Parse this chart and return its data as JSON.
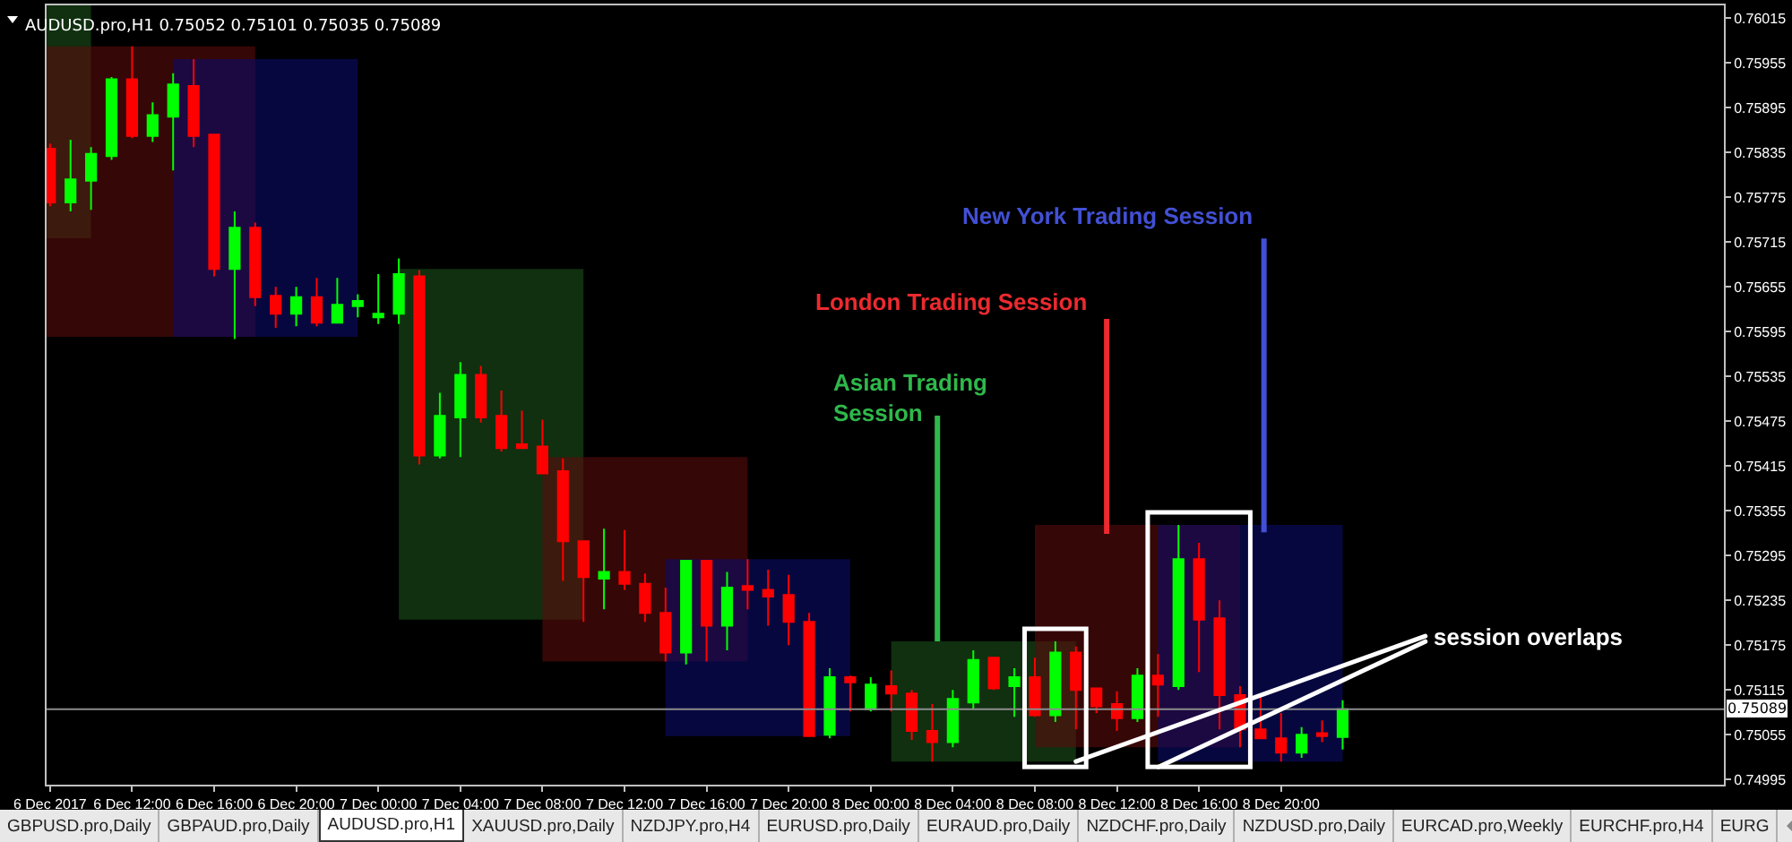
{
  "chart_data": {
    "type": "candlestick",
    "title": "AUDUSD.pro,H1 0.75052 0.75101 0.75035 0.75089",
    "x": [
      "2017-12-06T08:00",
      "2017-12-06T09:00",
      "2017-12-06T10:00",
      "2017-12-06T11:00",
      "2017-12-06T12:00",
      "2017-12-06T13:00",
      "2017-12-06T14:00",
      "2017-12-06T15:00",
      "2017-12-06T16:00",
      "2017-12-06T17:00",
      "2017-12-06T18:00",
      "2017-12-06T19:00",
      "2017-12-06T20:00",
      "2017-12-06T21:00",
      "2017-12-06T22:00",
      "2017-12-06T23:00",
      "2017-12-07T00:00",
      "2017-12-07T01:00",
      "2017-12-07T02:00",
      "2017-12-07T03:00",
      "2017-12-07T04:00",
      "2017-12-07T05:00",
      "2017-12-07T06:00",
      "2017-12-07T07:00",
      "2017-12-07T08:00",
      "2017-12-07T09:00",
      "2017-12-07T10:00",
      "2017-12-07T11:00",
      "2017-12-07T12:00",
      "2017-12-07T13:00",
      "2017-12-07T14:00",
      "2017-12-07T15:00",
      "2017-12-07T16:00",
      "2017-12-07T17:00",
      "2017-12-07T18:00",
      "2017-12-07T19:00",
      "2017-12-07T20:00",
      "2017-12-07T21:00",
      "2017-12-07T22:00",
      "2017-12-07T23:00",
      "2017-12-08T00:00",
      "2017-12-08T01:00",
      "2017-12-08T02:00",
      "2017-12-08T03:00",
      "2017-12-08T04:00",
      "2017-12-08T05:00",
      "2017-12-08T06:00",
      "2017-12-08T07:00",
      "2017-12-08T08:00",
      "2017-12-08T09:00",
      "2017-12-08T10:00",
      "2017-12-08T11:00",
      "2017-12-08T12:00",
      "2017-12-08T13:00",
      "2017-12-08T14:00",
      "2017-12-08T15:00",
      "2017-12-08T16:00",
      "2017-12-08T17:00",
      "2017-12-08T18:00",
      "2017-12-08T19:00",
      "2017-12-08T20:00",
      "2017-12-08T21:00",
      "2017-12-08T22:00",
      "2017-12-08T23:00"
    ],
    "ohlc": [
      [
        0.7584,
        0.75847,
        0.75763,
        0.75768
      ],
      [
        0.75768,
        0.75852,
        0.75756,
        0.75799
      ],
      [
        0.75797,
        0.75842,
        0.75758,
        0.75833
      ],
      [
        0.7583,
        0.75936,
        0.75825,
        0.75933
      ],
      [
        0.75933,
        0.75977,
        0.75854,
        0.75857
      ],
      [
        0.75857,
        0.75902,
        0.75849,
        0.75885
      ],
      [
        0.75883,
        0.75941,
        0.75811,
        0.75926
      ],
      [
        0.75924,
        0.7596,
        0.75842,
        0.75857
      ],
      [
        0.75859,
        0.75859,
        0.75669,
        0.75679
      ],
      [
        0.75679,
        0.75756,
        0.75585,
        0.75734
      ],
      [
        0.75734,
        0.75741,
        0.75629,
        0.75641
      ],
      [
        0.75643,
        0.75655,
        0.756,
        0.75619
      ],
      [
        0.75619,
        0.75655,
        0.75602,
        0.75641
      ],
      [
        0.75641,
        0.75667,
        0.75602,
        0.75607
      ],
      [
        0.75607,
        0.75667,
        0.75607,
        0.75631
      ],
      [
        0.75629,
        0.75645,
        0.75614,
        0.75636
      ],
      [
        0.75614,
        0.75672,
        0.75605,
        0.75619
      ],
      [
        0.75619,
        0.75693,
        0.75605,
        0.75672
      ],
      [
        0.75669,
        0.75677,
        0.75417,
        0.75429
      ],
      [
        0.75429,
        0.75513,
        0.75425,
        0.75482
      ],
      [
        0.7548,
        0.75554,
        0.75427,
        0.75537
      ],
      [
        0.75537,
        0.75549,
        0.75473,
        0.7548
      ],
      [
        0.75482,
        0.75516,
        0.75434,
        0.75439
      ],
      [
        0.75444,
        0.75489,
        0.75439,
        0.75439
      ],
      [
        0.75441,
        0.75477,
        0.75405,
        0.75405
      ],
      [
        0.75408,
        0.75425,
        0.75261,
        0.75314
      ],
      [
        0.75314,
        0.75314,
        0.75206,
        0.75266
      ],
      [
        0.75264,
        0.75331,
        0.75223,
        0.75273
      ],
      [
        0.75273,
        0.75329,
        0.75249,
        0.75257
      ],
      [
        0.75257,
        0.75271,
        0.75206,
        0.75218
      ],
      [
        0.75218,
        0.75252,
        0.75153,
        0.75165
      ],
      [
        0.75165,
        0.75288,
        0.75149,
        0.75288
      ],
      [
        0.75288,
        0.75288,
        0.75153,
        0.75201
      ],
      [
        0.75201,
        0.75273,
        0.75168,
        0.75252
      ],
      [
        0.75254,
        0.7529,
        0.75223,
        0.75249
      ],
      [
        0.75249,
        0.75276,
        0.75201,
        0.7524
      ],
      [
        0.75242,
        0.75269,
        0.75175,
        0.75206
      ],
      [
        0.75206,
        0.75218,
        0.75053,
        0.75053
      ],
      [
        0.75055,
        0.75144,
        0.7505,
        0.75132
      ],
      [
        0.75132,
        0.75134,
        0.75086,
        0.75125
      ],
      [
        0.75089,
        0.75132,
        0.75086,
        0.75122
      ],
      [
        0.7512,
        0.75141,
        0.75086,
        0.7511
      ],
      [
        0.7511,
        0.75115,
        0.75048,
        0.7506
      ],
      [
        0.7506,
        0.75096,
        0.75019,
        0.75045
      ],
      [
        0.75045,
        0.75115,
        0.75038,
        0.75103
      ],
      [
        0.75098,
        0.75168,
        0.75089,
        0.75155
      ],
      [
        0.75158,
        0.75158,
        0.75115,
        0.75117
      ],
      [
        0.7512,
        0.75144,
        0.75079,
        0.75132
      ],
      [
        0.75132,
        0.75158,
        0.75079,
        0.75081
      ],
      [
        0.75081,
        0.7518,
        0.75072,
        0.75165
      ],
      [
        0.75165,
        0.75173,
        0.75062,
        0.75115
      ],
      [
        0.75117,
        0.75117,
        0.75084,
        0.75093
      ],
      [
        0.75096,
        0.75113,
        0.7506,
        0.75077
      ],
      [
        0.75077,
        0.75144,
        0.75072,
        0.75134
      ],
      [
        0.75134,
        0.75163,
        0.75079,
        0.75122
      ],
      [
        0.7512,
        0.75336,
        0.75115,
        0.7529
      ],
      [
        0.7529,
        0.75312,
        0.75139,
        0.75209
      ],
      [
        0.75211,
        0.75235,
        0.75062,
        0.75108
      ],
      [
        0.75108,
        0.7512,
        0.75038,
        0.75062
      ],
      [
        0.75062,
        0.7511,
        0.7505,
        0.7505
      ],
      [
        0.7505,
        0.75084,
        0.75019,
        0.75031
      ],
      [
        0.75031,
        0.75065,
        0.75024,
        0.75055
      ],
      [
        0.75057,
        0.75074,
        0.75045,
        0.75053
      ],
      [
        0.75052,
        0.75101,
        0.75035,
        0.75089
      ]
    ],
    "colors": [
      "#ff0000",
      "#00ff00",
      "#00ff00",
      "#00ff00",
      "#ff0000",
      "#00ff00",
      "#00ff00",
      "#ff0000",
      "#ff0000",
      "#00ff00",
      "#ff0000",
      "#ff0000",
      "#00ff00",
      "#ff0000",
      "#00ff00",
      "#00ff00",
      "#00ff00",
      "#00ff00",
      "#ff0000",
      "#00ff00",
      "#00ff00",
      "#ff0000",
      "#ff0000",
      "#ff0000",
      "#ff0000",
      "#ff0000",
      "#ff0000",
      "#00ff00",
      "#ff0000",
      "#ff0000",
      "#ff0000",
      "#00ff00",
      "#ff0000",
      "#00ff00",
      "#ff0000",
      "#ff0000",
      "#ff0000",
      "#ff0000",
      "#00ff00",
      "#ff0000",
      "#00ff00",
      "#ff0000",
      "#ff0000",
      "#ff0000",
      "#00ff00",
      "#00ff00",
      "#ff0000",
      "#00ff00",
      "#ff0000",
      "#00ff00",
      "#ff0000",
      "#ff0000",
      "#ff0000",
      "#00ff00",
      "#ff0000",
      "#00ff00",
      "#ff0000",
      "#ff0000",
      "#ff0000",
      "#ff0000",
      "#ff0000",
      "#00ff00",
      "#ff0000",
      "#00ff00"
    ],
    "series": [
      {
        "type": "line",
        "color": "#1a501a",
        "x": [
          "2017-12-06T07:50",
          "2017-12-06T10:00"
        ],
        "values": [
          null,
          null
        ],
        "lower": [
          0.7572,
          0.7572
        ],
        "upper": [
          0.76032,
          0.76032
        ]
      },
      {
        "type": "line",
        "color": "#5a0c0c",
        "x": [
          "2017-12-06T07:50",
          "2017-12-06T18:00"
        ],
        "values": [
          null,
          null
        ],
        "lower": [
          0.75588,
          0.75588
        ],
        "upper": [
          0.75977,
          0.75977
        ]
      },
      {
        "type": "line",
        "color": "#0c0c6a",
        "x": [
          "2017-12-06T14:00",
          "2017-12-06T23:00"
        ],
        "values": [
          null,
          null
        ],
        "lower": [
          0.75588,
          0.75588
        ],
        "upper": [
          0.7596,
          0.7596
        ]
      },
      {
        "type": "line",
        "color": "#1a501a",
        "x": [
          "2017-12-07T01:00",
          "2017-12-07T10:00"
        ],
        "values": [
          null,
          null
        ],
        "lower": [
          0.75209,
          0.75209
        ],
        "upper": [
          0.75679,
          0.75679
        ]
      },
      {
        "type": "line",
        "color": "#5a0c0c",
        "x": [
          "2017-12-07T08:00",
          "2017-12-07T18:00"
        ],
        "values": [
          null,
          null
        ],
        "lower": [
          0.75153,
          0.75153
        ],
        "upper": [
          0.75427,
          0.75427
        ]
      },
      {
        "type": "line",
        "color": "#0c0c6a",
        "x": [
          "2017-12-07T14:00",
          "2017-12-07T23:00"
        ],
        "values": [
          null,
          null
        ],
        "lower": [
          0.75053,
          0.75053
        ],
        "upper": [
          0.7529,
          0.7529
        ]
      },
      {
        "type": "line",
        "color": "#1a501a",
        "x": [
          "2017-12-08T01:00",
          "2017-12-08T10:00"
        ],
        "values": [
          null,
          null
        ],
        "lower": [
          0.75019,
          0.75019
        ],
        "upper": [
          0.7518,
          0.7518
        ]
      },
      {
        "type": "line",
        "color": "#5a0c0c",
        "x": [
          "2017-12-08T08:00",
          "2017-12-08T18:00"
        ],
        "values": [
          null,
          null
        ],
        "lower": [
          0.75038,
          0.75038
        ],
        "upper": [
          0.75336,
          0.75336
        ]
      },
      {
        "type": "line",
        "color": "#0c0c6a",
        "x": [
          "2017-12-08T14:00",
          "2017-12-08T23:00"
        ],
        "values": [
          null,
          null
        ],
        "lower": [
          0.75019,
          0.75019
        ],
        "upper": [
          0.75336,
          0.75336
        ]
      }
    ],
    "xlim": [
      "2017-12-06T07:50",
      "2017-12-09T17:35"
    ],
    "xticks": [
      {
        "value": "2017-12-06T08:00",
        "label": "6 Dec 2017"
      },
      {
        "value": "2017-12-06T12:00",
        "label": "6 Dec 12:00"
      },
      {
        "value": "2017-12-06T16:00",
        "label": "6 Dec 16:00"
      },
      {
        "value": "2017-12-06T20:00",
        "label": "6 Dec 20:00"
      },
      {
        "value": "2017-12-07T00:00",
        "label": "7 Dec 00:00"
      },
      {
        "value": "2017-12-07T04:00",
        "label": "7 Dec 04:00"
      },
      {
        "value": "2017-12-07T08:00",
        "label": "7 Dec 08:00"
      },
      {
        "value": "2017-12-07T12:00",
        "label": "7 Dec 12:00"
      },
      {
        "value": "2017-12-07T16:00",
        "label": "7 Dec 16:00"
      },
      {
        "value": "2017-12-07T20:00",
        "label": "7 Dec 20:00"
      },
      {
        "value": "2017-12-08T00:00",
        "label": "8 Dec 00:00"
      },
      {
        "value": "2017-12-08T04:00",
        "label": "8 Dec 04:00"
      },
      {
        "value": "2017-12-08T08:00",
        "label": "8 Dec 08:00"
      },
      {
        "value": "2017-12-08T12:00",
        "label": "8 Dec 12:00"
      },
      {
        "value": "2017-12-08T16:00",
        "label": "8 Dec 16:00"
      },
      {
        "value": "2017-12-08T20:00",
        "label": "8 Dec 20:00"
      }
    ],
    "ylim": [
      0.74988,
      0.76032
    ],
    "yticks": [
      0.74995,
      0.75055,
      0.75115,
      0.75175,
      0.75235,
      0.75295,
      0.75355,
      0.75415,
      0.75475,
      0.75535,
      0.75595,
      0.75655,
      0.75715,
      0.75775,
      0.75835,
      0.75895,
      0.75955,
      0.76015
    ],
    "ref_lines": [
      {
        "axis": "y",
        "value": 0.75089,
        "label": "0.75089",
        "color": "#8c8c8c"
      }
    ],
    "annotations": [
      {
        "text": "Asian Trading\nSession",
        "x": "2017-12-08T03:15",
        "y": 0.7518
      },
      {
        "text": "London Trading Session",
        "x": "2017-12-08T11:30",
        "y": 0.75324
      },
      {
        "text": "New York Trading Session",
        "x": "2017-12-08T19:10",
        "y": 0.75326
      },
      {
        "text": "session overlaps",
        "x": "2017-12-08T10:00",
        "y": 0.75019
      },
      "GBPUSD.pro,Daily",
      "GBPAUD.pro,Daily",
      "AUDUSD.pro,H1",
      "XAUUSD.pro,Daily",
      "NZDJPY.pro,H4",
      "EURUSD.pro,Daily",
      "EURAUD.pro,Daily",
      "NZDCHF.pro,Daily",
      "NZDUSD.pro,Daily",
      "EURCAD.pro,Weekly",
      "EURCHF.pro,H4",
      "EURG"
    ],
    "grid": false,
    "legend": false
  }
}
